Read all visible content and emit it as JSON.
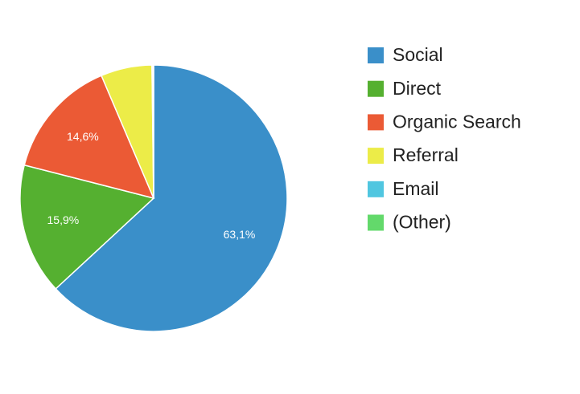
{
  "chart_data": {
    "type": "pie",
    "categories": [
      "Social",
      "Direct",
      "Organic Search",
      "Referral",
      "Email",
      "(Other)"
    ],
    "values": [
      63.1,
      15.9,
      14.6,
      6.2,
      0.1,
      0.1
    ],
    "value_labels": [
      "63,1%",
      "15,9%",
      "14,6%",
      null,
      null,
      null
    ],
    "colors": [
      "#3a8fc9",
      "#55b030",
      "#eb5a35",
      "#ecec48",
      "#50c6e0",
      "#63d96b"
    ]
  }
}
